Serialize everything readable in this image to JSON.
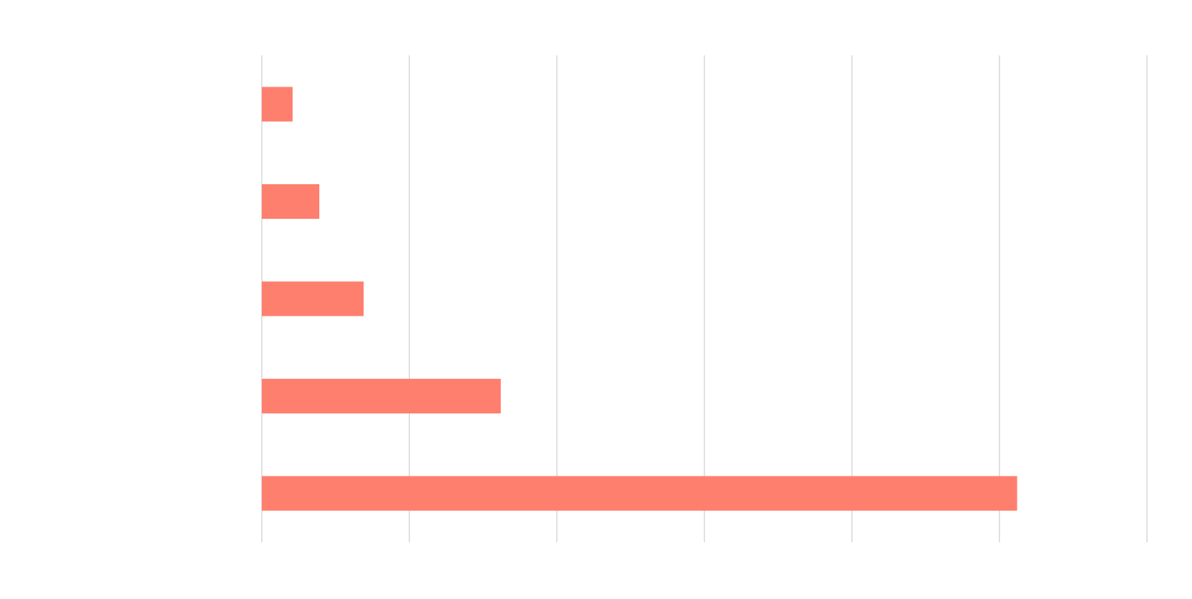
{
  "chart_data": {
    "type": "bar",
    "orientation": "horizontal",
    "categories": [
      "",
      "",
      "",
      "",
      ""
    ],
    "values": [
      0.21,
      0.39,
      0.69,
      1.62,
      5.12
    ],
    "xlim": [
      0,
      6
    ],
    "xticks": [
      0,
      1,
      2,
      3,
      4,
      5,
      6
    ],
    "grid": true,
    "colors": {
      "bar": "#ff7f6f",
      "grid": "#cccccc",
      "background": "#ffffff"
    },
    "title": "",
    "xlabel": "",
    "ylabel": ""
  }
}
